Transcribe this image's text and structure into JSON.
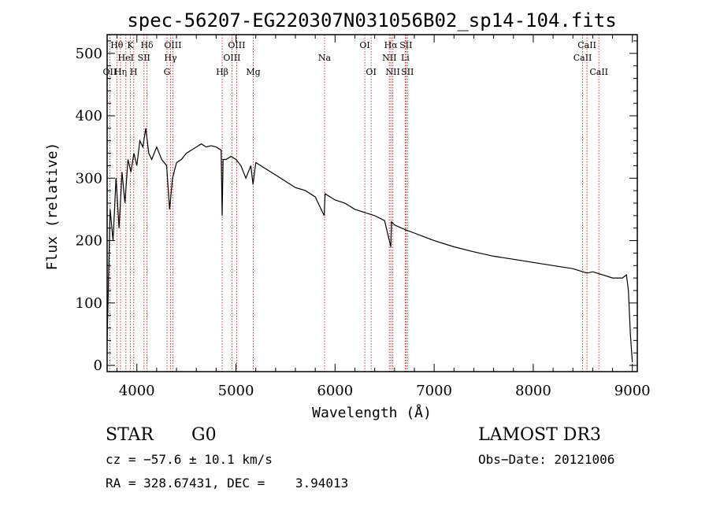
{
  "chart_data": {
    "type": "line",
    "title": "spec-56207-EG220307N031056B02_sp14-104.fits",
    "xlabel": "Wavelength (Å)",
    "ylabel": "Flux (relative)",
    "xlim": [
      3700,
      9050
    ],
    "ylim": [
      -10,
      530
    ],
    "xticks": [
      4000,
      5000,
      6000,
      7000,
      8000,
      9000
    ],
    "yticks": [
      0,
      100,
      200,
      300,
      400,
      500
    ],
    "series": [
      {
        "name": "flux",
        "x": [
          3700,
          3730,
          3760,
          3790,
          3820,
          3850,
          3880,
          3910,
          3940,
          3970,
          4000,
          4030,
          4060,
          4090,
          4120,
          4150,
          4200,
          4250,
          4300,
          4330,
          4360,
          4400,
          4450,
          4500,
          4550,
          4600,
          4650,
          4700,
          4750,
          4800,
          4850,
          4861,
          4870,
          4900,
          4950,
          5000,
          5050,
          5100,
          5150,
          5172,
          5200,
          5250,
          5300,
          5400,
          5500,
          5600,
          5700,
          5800,
          5890,
          5900,
          6000,
          6100,
          6200,
          6300,
          6400,
          6500,
          6563,
          6570,
          6600,
          6700,
          6800,
          6900,
          7000,
          7200,
          7400,
          7600,
          7800,
          8000,
          8200,
          8400,
          8500,
          8542,
          8600,
          8700,
          8800,
          8900,
          8940,
          8960,
          8980,
          9000
        ],
        "y": [
          40,
          250,
          200,
          300,
          220,
          310,
          260,
          330,
          310,
          340,
          320,
          360,
          350,
          380,
          340,
          330,
          350,
          330,
          320,
          250,
          300,
          325,
          330,
          340,
          345,
          350,
          355,
          350,
          352,
          350,
          345,
          240,
          330,
          330,
          335,
          330,
          320,
          300,
          320,
          290,
          325,
          320,
          315,
          305,
          295,
          285,
          280,
          270,
          240,
          275,
          265,
          260,
          250,
          245,
          240,
          232,
          190,
          230,
          225,
          218,
          212,
          206,
          200,
          190,
          182,
          175,
          170,
          165,
          160,
          155,
          150,
          148,
          150,
          145,
          140,
          140,
          145,
          120,
          50,
          5
        ]
      }
    ],
    "line_markers": [
      {
        "label": "Hθ",
        "x": 3798,
        "row": 1
      },
      {
        "label": "OII",
        "x": 3727,
        "row": 3
      },
      {
        "label": "Hη",
        "x": 3835,
        "row": 3
      },
      {
        "label": "HeI",
        "x": 3889,
        "row": 2
      },
      {
        "label": "SII",
        "x": 4072,
        "row": 2
      },
      {
        "label": "K",
        "x": 3934,
        "row": 1
      },
      {
        "label": "H",
        "x": 3968,
        "row": 3
      },
      {
        "label": "Hδ",
        "x": 4102,
        "row": 1
      },
      {
        "label": "OIII",
        "x": 4363,
        "row": 1
      },
      {
        "label": "Hγ",
        "x": 4340,
        "row": 2
      },
      {
        "label": "G",
        "x": 4304,
        "row": 3
      },
      {
        "label": "Hβ",
        "x": 4861,
        "row": 3
      },
      {
        "label": "OIII",
        "x": 5007,
        "row": 1
      },
      {
        "label": "OIII",
        "x": 4959,
        "row": 2
      },
      {
        "label": "Mg",
        "x": 5175,
        "row": 3
      },
      {
        "label": "Na",
        "x": 5894,
        "row": 2
      },
      {
        "label": "OI",
        "x": 6300,
        "row": 1
      },
      {
        "label": "OI",
        "x": 6364,
        "row": 3
      },
      {
        "label": "Hα",
        "x": 6563,
        "row": 1
      },
      {
        "label": "NII",
        "x": 6548,
        "row": 2
      },
      {
        "label": "NII",
        "x": 6583,
        "row": 3
      },
      {
        "label": "SII",
        "x": 6716,
        "row": 1
      },
      {
        "label": "Li",
        "x": 6708,
        "row": 2
      },
      {
        "label": "SII",
        "x": 6731,
        "row": 3
      },
      {
        "label": "CaII",
        "x": 8542,
        "row": 1
      },
      {
        "label": "CaII",
        "x": 8498,
        "row": 2
      },
      {
        "label": "CaII",
        "x": 8662,
        "row": 3
      }
    ]
  },
  "info": {
    "object_type": "STAR",
    "subclass": "G0",
    "survey": "LAMOST DR3",
    "cz": "cz = −57.6 ± 10.1 km/s",
    "obs_date": "Obs−Date: 20121006",
    "coords": "RA = 328.67431, DEC =    3.94013"
  }
}
